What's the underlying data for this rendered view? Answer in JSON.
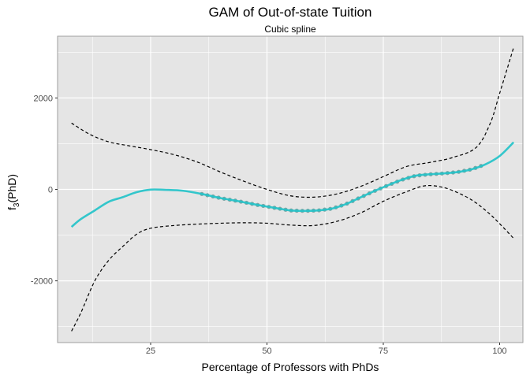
{
  "chart_data": {
    "type": "line",
    "title": "GAM of Out-of-state Tuition",
    "subtitle": "Cubic spline",
    "xlabel": "Percentage of Professors with PhDs",
    "ylabel": "f3(PhD)",
    "ylabel_main": "f",
    "ylabel_sub": "3",
    "ylabel_rest": "(PhD)",
    "xlim": [
      5,
      105
    ],
    "ylim": [
      -3350,
      3350
    ],
    "x_ticks": [
      25,
      50,
      75,
      100
    ],
    "y_ticks": [
      -2000,
      0,
      2000
    ],
    "x_tick_labels": [
      "25",
      "50",
      "75",
      "100"
    ],
    "y_tick_labels": [
      "-2000",
      "0",
      "2000"
    ],
    "grid": true,
    "colors": {
      "fit": "#24c3c9",
      "band": "#000000",
      "points": "#1f6f6e",
      "panel": "#e5e5e5",
      "grid": "#ffffff"
    },
    "series": [
      {
        "role": "fit",
        "style": "solid",
        "x": [
          8,
          10,
          13,
          16,
          19,
          22,
          25,
          28,
          32,
          36,
          40,
          44,
          48,
          52,
          55,
          58,
          61,
          64,
          67,
          70,
          73,
          76,
          79,
          82,
          85,
          88,
          91,
          94,
          97,
          100,
          103
        ],
        "y": [
          -820,
          -650,
          -460,
          -270,
          -170,
          -60,
          -5,
          -10,
          -30,
          -100,
          -190,
          -260,
          -340,
          -410,
          -460,
          -470,
          -460,
          -420,
          -320,
          -180,
          -40,
          90,
          210,
          300,
          330,
          350,
          380,
          440,
          550,
          730,
          1030
        ]
      },
      {
        "role": "upper-band",
        "style": "dashed",
        "x": [
          8,
          12,
          16,
          20,
          25,
          30,
          35,
          40,
          45,
          50,
          55,
          60,
          65,
          70,
          75,
          80,
          85,
          90,
          95,
          98,
          100,
          103
        ],
        "y": [
          1450,
          1200,
          1040,
          960,
          870,
          760,
          600,
          380,
          180,
          0,
          -140,
          -170,
          -100,
          60,
          280,
          500,
          590,
          700,
          920,
          1450,
          2100,
          3100
        ]
      },
      {
        "role": "lower-band",
        "style": "dashed",
        "x": [
          8,
          10,
          13,
          16,
          19,
          22,
          25,
          30,
          35,
          40,
          45,
          50,
          55,
          60,
          65,
          70,
          75,
          80,
          84,
          88,
          92,
          95,
          98,
          100,
          103
        ],
        "y": [
          -3100,
          -2700,
          -2000,
          -1550,
          -1250,
          -980,
          -850,
          -790,
          -760,
          -740,
          -730,
          -740,
          -780,
          -790,
          -700,
          -520,
          -260,
          -50,
          80,
          40,
          -120,
          -300,
          -550,
          -750,
          -1070
        ]
      }
    ],
    "rug_points": {
      "x_start": 36,
      "x_end": 96,
      "count": 51
    }
  }
}
